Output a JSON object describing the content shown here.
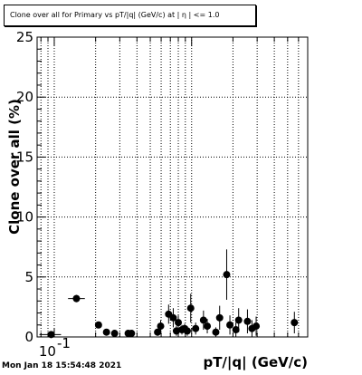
{
  "header": {
    "title": "Clone  over all for Primary vs pT/|q| (GeV/c) at | η | <= 1.0",
    "timestamp": "Mon Jan 18 15:54:48 2021"
  },
  "chart_data": {
    "type": "scatter",
    "xlabel": "pT/|q| (GeV/c)",
    "ylabel": "Clone  over all (%)",
    "xscale": "log",
    "xlim": [
      0.075,
      7.0
    ],
    "ylim": [
      0,
      25
    ],
    "yticks": [
      0,
      5,
      10,
      15,
      20,
      25
    ],
    "xtick_labels": [
      {
        "x": 0.1,
        "label": "10"
      }
    ],
    "xtick_label_exponent": "-1",
    "grid": true,
    "colors": {
      "marker": "#000000",
      "grid": "#000000",
      "frame": "#000000"
    },
    "points": [
      {
        "x": 0.095,
        "xlo": 0.078,
        "xhi": 0.112,
        "y": 0.2,
        "yerr": 0.0
      },
      {
        "x": 0.145,
        "xlo": 0.126,
        "xhi": 0.167,
        "y": 3.2,
        "yerr": 0.3
      },
      {
        "x": 0.21,
        "y": 1.0,
        "yerr": 0.2
      },
      {
        "x": 0.24,
        "y": 0.4,
        "yerr": 0.15
      },
      {
        "x": 0.275,
        "y": 0.3,
        "yerr": 0.1
      },
      {
        "x": 0.345,
        "y": 0.3,
        "yerr": 0.1
      },
      {
        "x": 0.365,
        "y": 0.3,
        "yerr": 0.1
      },
      {
        "x": 0.565,
        "y": 0.4,
        "yerr": 0.3
      },
      {
        "x": 0.595,
        "y": 0.9,
        "yerr": 0.5
      },
      {
        "x": 0.68,
        "y": 1.9,
        "yerr": 0.8
      },
      {
        "x": 0.735,
        "y": 1.6,
        "yerr": 0.8
      },
      {
        "x": 0.775,
        "y": 0.5,
        "yerr": 0.4
      },
      {
        "x": 0.8,
        "y": 1.2,
        "yerr": 0.6
      },
      {
        "x": 0.85,
        "y": 0.6,
        "yerr": 0.4
      },
      {
        "x": 0.89,
        "y": 0.7,
        "yerr": 0.4
      },
      {
        "x": 0.93,
        "y": 0.5,
        "yerr": 0.4
      },
      {
        "x": 0.985,
        "y": 2.4,
        "yerr": 1.2
      },
      {
        "x": 1.07,
        "y": 0.7,
        "yerr": 0.5
      },
      {
        "x": 1.22,
        "y": 1.4,
        "yerr": 0.8
      },
      {
        "x": 1.3,
        "y": 0.9,
        "yerr": 0.6
      },
      {
        "x": 1.5,
        "y": 0.4,
        "yerr": 0.4
      },
      {
        "x": 1.6,
        "y": 1.6,
        "yerr": 1.0
      },
      {
        "x": 1.8,
        "y": 5.2,
        "yerr": 2.1
      },
      {
        "x": 1.9,
        "y": 1.0,
        "yerr": 0.8
      },
      {
        "x": 2.1,
        "y": 0.6,
        "yerr": 0.6
      },
      {
        "x": 2.2,
        "y": 1.4,
        "yerr": 1.0
      },
      {
        "x": 2.55,
        "y": 1.3,
        "yerr": 1.0
      },
      {
        "x": 2.75,
        "y": 0.7,
        "yerr": 0.7
      },
      {
        "x": 2.95,
        "y": 0.9,
        "yerr": 0.8
      },
      {
        "x": 5.6,
        "y": 1.2,
        "yerr": 0.9
      }
    ]
  }
}
